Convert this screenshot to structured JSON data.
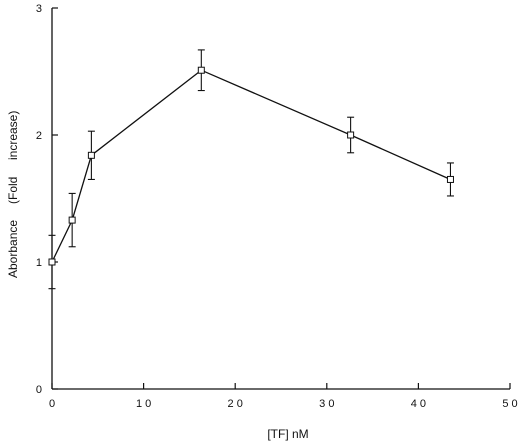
{
  "chart_data": {
    "type": "line",
    "xlabel": "[TF] nM",
    "ylabel": "Aborbance (Fold increase)",
    "ylabel_parts": [
      "Aborbance",
      "(Fold",
      "increase)"
    ],
    "xlim": [
      0,
      50
    ],
    "ylim": [
      0,
      3
    ],
    "xticks": [
      0,
      10,
      20,
      30,
      40,
      50
    ],
    "yticks": [
      0,
      1,
      2,
      3
    ],
    "xtick_labels": [
      "0",
      "1 0",
      "2 0",
      "3 0",
      "4 0",
      "5 0"
    ],
    "ytick_labels": [
      "0",
      "1",
      "2",
      "3"
    ],
    "grid": false,
    "marker": "square",
    "series": [
      {
        "x": [
          0,
          2.2,
          4.3,
          16.3,
          32.6,
          43.5
        ],
        "y": [
          1.0,
          1.33,
          1.84,
          2.51,
          2.0,
          1.65
        ],
        "error": [
          0.21,
          0.21,
          0.19,
          0.16,
          0.14,
          0.13
        ]
      }
    ]
  }
}
